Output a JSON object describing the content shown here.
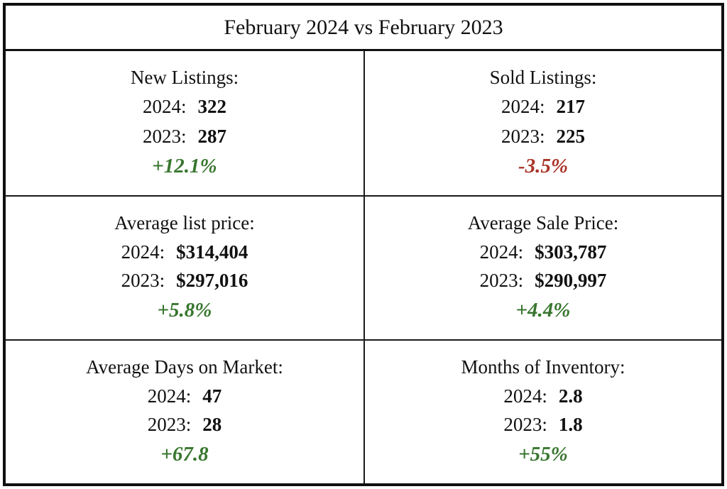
{
  "title": "February 2024 vs February 2023",
  "colors": {
    "positive": "#38762f",
    "negative": "#a93327",
    "border": "#101010",
    "text": "#111111"
  },
  "year_labels": {
    "y2024": "2024:",
    "y2023": "2023:"
  },
  "cells": [
    {
      "label": "New Listings:",
      "v2024": "322",
      "v2023": "287",
      "change": "+12.1%",
      "direction": "positive"
    },
    {
      "label": "Sold Listings:",
      "v2024": "217",
      "v2023": "225",
      "change": "-3.5%",
      "direction": "negative"
    },
    {
      "label": "Average list price:",
      "v2024": "$314,404",
      "v2023": "$297,016",
      "change": "+5.8%",
      "direction": "positive"
    },
    {
      "label": "Average Sale Price:",
      "v2024": "$303,787",
      "v2023": "$290,997",
      "change": "+4.4%",
      "direction": "positive"
    },
    {
      "label": "Average Days on Market:",
      "v2024": "47",
      "v2023": "28",
      "change": "+67.8",
      "direction": "positive"
    },
    {
      "label": "Months of Inventory:",
      "v2024": "2.8",
      "v2023": "1.8",
      "change": "+55%",
      "direction": "positive"
    }
  ],
  "chart_data": {
    "type": "table",
    "title": "February 2024 vs February 2023",
    "metrics": [
      "New Listings",
      "Sold Listings",
      "Average list price",
      "Average Sale Price",
      "Average Days on Market",
      "Months of Inventory"
    ],
    "series": [
      {
        "name": "2024",
        "values": [
          322,
          217,
          314404,
          303787,
          47,
          2.8
        ]
      },
      {
        "name": "2023",
        "values": [
          287,
          225,
          297016,
          290997,
          28,
          1.8
        ]
      }
    ],
    "change": [
      "+12.1%",
      "-3.5%",
      "+5.8%",
      "+4.4%",
      "+67.8",
      "+55%"
    ],
    "change_direction": [
      "positive",
      "negative",
      "positive",
      "positive",
      "positive",
      "positive"
    ]
  }
}
